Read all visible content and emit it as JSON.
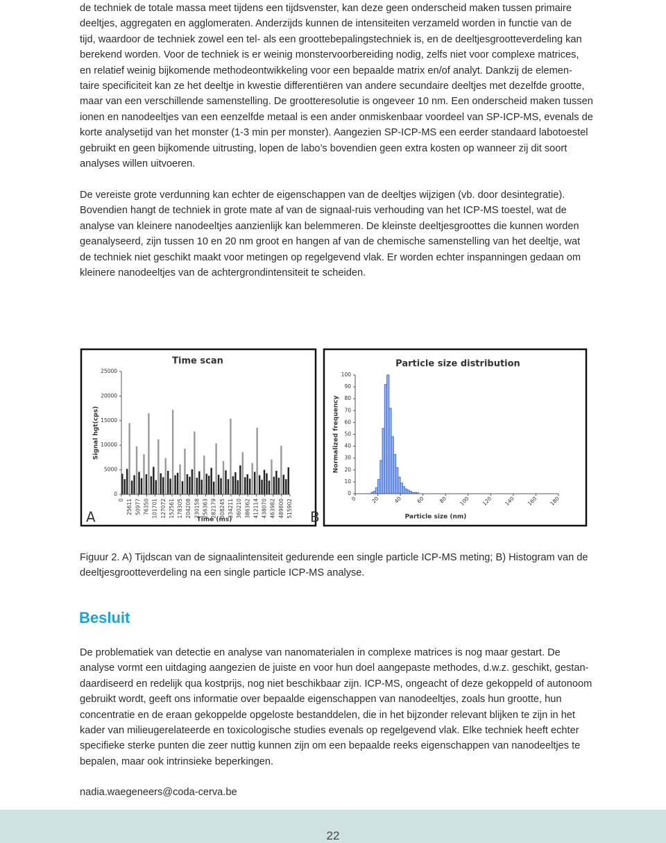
{
  "body": {
    "paragraphs": [
      {
        "lines": [
          "de techniek de totale massa meet tijdens een tijdsvenster, kan deze geen onderscheid maken tussen primaire",
          "deeltjes, aggregaten en agglomeraten. Anderzijds kunnen de intensiteiten verzameld worden in functie van de",
          "tijd, waardoor de techniek zowel een tel- als een groottebepalingstechniek is, en de deeltjesgrootteverdeling kan",
          "berekend worden. Voor de techniek is er weinig monstervoorbereiding nodig, zelfs niet voor complexe matrices,",
          "en relatief weinig bijkomende methodeontwikkeling voor een bepaalde matrix en/of analyt. Dankzij de elemen-",
          "taire specificiteit kan ze het deeltje in kwestie differentiëren van andere secundaire deeltjes met dezelfde grootte,",
          "maar van een verschillende samenstelling. De grootteresolutie is ongeveer 10 nm. Een onderscheid maken tussen",
          "ionen en nanodeeltjes van een eenzelfde metaal is een ander onmiskenbaar voordeel van SP-ICP-MS, evenals de",
          "korte analysetijd van het monster (1-3 min per monster). Aangezien SP-ICP-MS een eerder standaard labotoestel",
          "gebruikt en geen bijkomende uitrusting, lopen de labo’s bovendien geen extra kosten op wanneer zij dit soort",
          "analyses willen uitvoeren."
        ]
      },
      {
        "lines": [
          "De vereiste grote verdunning kan echter de eigenschappen van de deeltjes wijzigen (vb. door desintegratie).",
          "Bovendien hangt de techniek in grote mate af van de signaal-ruis verhouding van het ICP-MS toestel, wat de",
          "analyse van kleinere nanodeeltjes aanzienlijk kan belemmeren. De kleinste deeltjesgroottes die kunnen worden",
          "geanalyseerd, zijn tussen 10 en 20 nm groot en hangen af van de chemische samenstelling van het deeltje, wat",
          "de techniek niet geschikt maakt voor metingen op regelgevend vlak. Er worden echter inspanningen gedaan om",
          "kleinere nanodeeltjes van de achtergrondintensiteit te scheiden."
        ]
      },
      {
        "lines": [
          "Figuur 2. A) Tijdscan van de signaalintensiteit gedurende een single particle ICP-MS meting; B) Histogram van de",
          "deeltjesgrootteverdeling na een single particle ICP-MS analyse."
        ]
      },
      {
        "lines": [
          "De problematiek van detectie en analyse van nanomaterialen in complexe matrices is nog maar gestart. De",
          "analyse vormt een uitdaging aangezien de juiste en voor hun doel aangepaste methodes, d.w.z. geschikt, gestan-",
          "daardiseerd en redelijk qua kostprijs, nog niet beschikbaar zijn. ICP-MS, ongeacht of deze gekoppeld of autonoom",
          "gebruikt wordt, geeft ons informatie over bepaalde eigenschappen van nanodeeltjes, zoals hun grootte, hun",
          "concentratie en de eraan gekoppelde opgeloste bestanddelen, die in het bijzonder relevant blijken te zijn in het",
          "kader van milieugerelateerde en toxicologische studies evenals op regelgevend vlak. Elke techniek heeft echter",
          "specifieke sterke punten die zeer nuttig kunnen zijn om een bepaalde reeks eigenschappen van nanodeeltjes te",
          "bepalen, maar ook intrinsieke beperkingen."
        ]
      },
      {
        "lines": [
          "nadia.waegeneers@coda-cerva.be"
        ]
      }
    ],
    "heading": "Besluit",
    "page_number": "22"
  },
  "chart_data": [
    {
      "type": "bar",
      "label": "A",
      "title": "Time scan",
      "y_label": "Signal hgt(cps)",
      "x_label": "Time (ms)",
      "color": "#222222",
      "spike_color": "#9a9a9a",
      "ylim": [
        0,
        25000
      ],
      "yticks": [
        0,
        5000,
        10000,
        15000,
        20000,
        25000
      ],
      "xlim": [
        0,
        530000
      ],
      "xticks": [
        0,
        25611,
        50977,
        76350,
        101701,
        127072,
        152561,
        178305,
        204208,
        230158,
        256363,
        282179,
        308245,
        334211,
        360210,
        386362,
        412114,
        438070,
        463982,
        489800,
        515902
      ],
      "values": [
        4200,
        3100,
        5200,
        14500,
        2800,
        3900,
        9800,
        4600,
        3300,
        8200,
        4100,
        16500,
        3700,
        5600,
        2900,
        11200,
        4300,
        3500,
        7400,
        4800,
        3200,
        17200,
        3900,
        4400,
        6100,
        2700,
        9300,
        4100,
        3600,
        5100,
        12800,
        3400,
        4700,
        3000,
        7900,
        4200,
        3800,
        5400,
        2600,
        10400,
        4000,
        3300,
        6800,
        4900,
        3100,
        15400,
        3700,
        4500,
        2900,
        5900,
        8600,
        3500,
        4100,
        3200,
        6400,
        4600,
        13600,
        3900,
        3000,
        5000,
        4300,
        2800,
        7100,
        3600,
        4800,
        3400,
        9900,
        4000,
        3100,
        5500
      ]
    },
    {
      "type": "histogram",
      "label": "B",
      "title": "Particle size distribution",
      "y_label": "Normalized frequency",
      "x_label": "Particle size (nm)",
      "color": "#3f6fd6",
      "ylim": [
        0,
        100
      ],
      "yticks": [
        0,
        10,
        20,
        30,
        40,
        50,
        60,
        70,
        80,
        90,
        100
      ],
      "xlim": [
        0,
        180
      ],
      "xticks": [
        0,
        20,
        40,
        60,
        80,
        100,
        120,
        140,
        160,
        180
      ],
      "bins": [
        14,
        16,
        18,
        20,
        22,
        24,
        26,
        28,
        30,
        32,
        34,
        36,
        38,
        40,
        42,
        44,
        46,
        48,
        50,
        52,
        54,
        56
      ],
      "values": [
        1,
        2,
        5,
        12,
        28,
        55,
        92,
        100,
        72,
        48,
        33,
        22,
        14,
        9,
        6,
        4,
        3,
        2,
        1,
        1,
        1
      ]
    }
  ]
}
